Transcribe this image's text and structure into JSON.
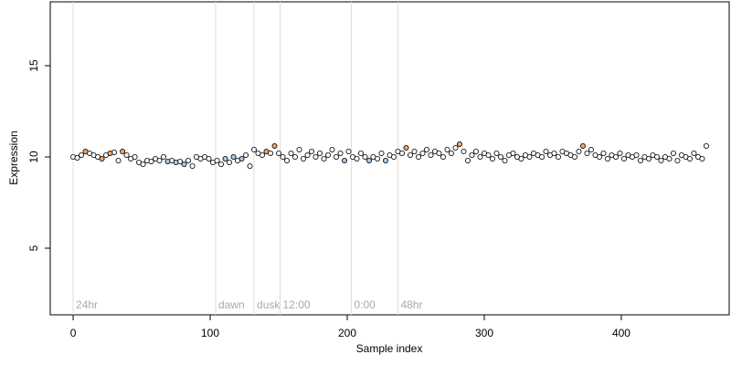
{
  "chart_data": {
    "type": "scatter",
    "xlabel": "Sample index",
    "ylabel": "Expression",
    "xlim": [
      -16.7,
      478.7
    ],
    "ylim": [
      1.35,
      18.5
    ],
    "xticks": [
      0,
      100,
      200,
      300,
      400
    ],
    "yticks": [
      5,
      10,
      15
    ],
    "annotations": [
      {
        "x": 0,
        "label": "24hr"
      },
      {
        "x": 104,
        "label": "dawn"
      },
      {
        "x": 132,
        "label": "dusk"
      },
      {
        "x": 151,
        "label": "12:00"
      },
      {
        "x": 203,
        "label": "0:00"
      },
      {
        "x": 237,
        "label": "48hr"
      }
    ],
    "series": [
      {
        "color": "#ffffff",
        "x": [
          0,
          3,
          6,
          12,
          15,
          18,
          24,
          30,
          33,
          39,
          42,
          45,
          48,
          51,
          54,
          57,
          60,
          63,
          66,
          72,
          78,
          84,
          87,
          90,
          93,
          96,
          99,
          102,
          105,
          108,
          114,
          120,
          126,
          129,
          132,
          135,
          138,
          144,
          150,
          153,
          156,
          159,
          162,
          165,
          168,
          171,
          174,
          177,
          180,
          183,
          186,
          189,
          192,
          195,
          201,
          204,
          207,
          210,
          213,
          219,
          222,
          225,
          231,
          234,
          237,
          240,
          246,
          249,
          252,
          255,
          258,
          261,
          264,
          267,
          270,
          273,
          276,
          279,
          285,
          288,
          291,
          294,
          297,
          300,
          303,
          306,
          309,
          312,
          315,
          318,
          321,
          324,
          327,
          330,
          333,
          336,
          339,
          342,
          345,
          348,
          351,
          354,
          357,
          360,
          363,
          366,
          369,
          375,
          378,
          381,
          384,
          387,
          390,
          393,
          396,
          399,
          402,
          405,
          408,
          411,
          414,
          417,
          420,
          423,
          426,
          429,
          432,
          435,
          438,
          441,
          444,
          447,
          450,
          453,
          456,
          459,
          462
        ],
        "values": [
          10.0,
          9.95,
          10.1,
          10.2,
          10.1,
          10.0,
          10.1,
          10.25,
          9.8,
          10.1,
          9.9,
          10.0,
          9.7,
          9.6,
          9.8,
          9.75,
          9.9,
          9.8,
          10.0,
          9.8,
          9.75,
          9.8,
          9.5,
          10.0,
          9.9,
          10.0,
          9.9,
          9.7,
          9.8,
          9.6,
          9.7,
          9.8,
          10.1,
          9.5,
          10.4,
          10.2,
          10.1,
          10.2,
          10.2,
          10.0,
          9.8,
          10.2,
          10.0,
          10.4,
          9.9,
          10.1,
          10.3,
          10.0,
          10.2,
          9.9,
          10.1,
          10.4,
          10.0,
          10.2,
          10.3,
          10.0,
          9.9,
          10.2,
          10.0,
          10.0,
          9.9,
          10.2,
          10.1,
          10.0,
          10.3,
          10.2,
          10.1,
          10.3,
          10.0,
          10.2,
          10.4,
          10.1,
          10.3,
          10.2,
          10.0,
          10.4,
          10.2,
          10.5,
          10.3,
          9.8,
          10.1,
          10.3,
          10.0,
          10.2,
          10.1,
          9.9,
          10.2,
          10.0,
          9.8,
          10.1,
          10.2,
          10.0,
          9.9,
          10.1,
          10.0,
          10.2,
          10.1,
          10.0,
          10.3,
          10.1,
          10.2,
          10.0,
          10.3,
          10.2,
          10.1,
          10.0,
          10.3,
          10.2,
          10.4,
          10.1,
          10.0,
          10.2,
          9.9,
          10.1,
          10.0,
          10.2,
          9.9,
          10.1,
          10.0,
          10.1,
          9.8,
          10.0,
          9.9,
          10.1,
          10.0,
          9.8,
          10.0,
          9.9,
          10.2,
          9.8,
          10.1,
          10.0,
          9.9,
          10.2,
          10.0,
          9.9,
          10.6
        ]
      },
      {
        "color": "#f4a460",
        "x": [
          9,
          21,
          27,
          36,
          141,
          147,
          243,
          282,
          372
        ],
        "values": [
          10.3,
          9.9,
          10.2,
          10.3,
          10.3,
          10.6,
          10.5,
          10.7,
          10.6
        ]
      },
      {
        "color": "#a6c8ec",
        "x": [
          69,
          75,
          81,
          111,
          117,
          123,
          198,
          216,
          228
        ],
        "values": [
          9.75,
          9.7,
          9.6,
          9.9,
          10.0,
          9.9,
          9.8,
          9.8,
          9.8
        ]
      }
    ]
  }
}
